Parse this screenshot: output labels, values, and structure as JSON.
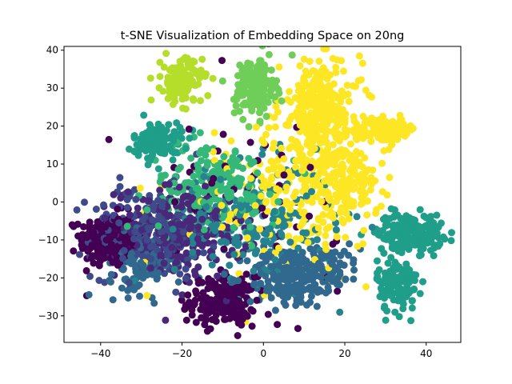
{
  "chart_data": {
    "type": "scatter",
    "title": "t-SNE Visualization of Embedding Space on 20ng",
    "xlabel": "",
    "ylabel": "",
    "xlim": [
      -49,
      48.5
    ],
    "ylim": [
      -37,
      41
    ],
    "xticks": [
      -40,
      -20,
      0,
      20,
      40
    ],
    "yticks": [
      -30,
      -20,
      -10,
      0,
      10,
      20,
      30,
      40
    ],
    "grid": false,
    "legend": "none",
    "colormap": "viridis",
    "clusters": [
      {
        "color": "#440154",
        "center": [
          -38,
          -10
        ],
        "spread": [
          3.5,
          3.5
        ],
        "count": 260
      },
      {
        "color": "#440154",
        "center": [
          -10,
          -26
        ],
        "spread": [
          4,
          3.2
        ],
        "count": 200
      },
      {
        "color": "#482878",
        "center": [
          -20,
          -8
        ],
        "spread": [
          8,
          6
        ],
        "count": 260
      },
      {
        "color": "#3e4a89",
        "center": [
          -28,
          -8
        ],
        "spread": [
          7,
          6
        ],
        "count": 220
      },
      {
        "color": "#31688e",
        "center": [
          6,
          -20
        ],
        "spread": [
          5,
          4
        ],
        "count": 180
      },
      {
        "color": "#31688e",
        "center": [
          14,
          -17
        ],
        "spread": [
          5,
          3
        ],
        "count": 120
      },
      {
        "color": "#31688e",
        "center": [
          -30,
          -16
        ],
        "spread": [
          4,
          4
        ],
        "count": 120
      },
      {
        "color": "#26828e",
        "center": [
          -2,
          -6
        ],
        "spread": [
          10,
          8
        ],
        "count": 220
      },
      {
        "color": "#1f9e89",
        "center": [
          36,
          -8
        ],
        "spread": [
          4,
          2.5
        ],
        "count": 200
      },
      {
        "color": "#1f9e89",
        "center": [
          33,
          -22
        ],
        "spread": [
          2.5,
          3.5
        ],
        "count": 120
      },
      {
        "color": "#1f9e89",
        "center": [
          -26,
          16
        ],
        "spread": [
          3,
          2.5
        ],
        "count": 120
      },
      {
        "color": "#35b779",
        "center": [
          -12,
          4
        ],
        "spread": [
          8,
          6
        ],
        "count": 200
      },
      {
        "color": "#6ece58",
        "center": [
          -2,
          30
        ],
        "spread": [
          2.5,
          4
        ],
        "count": 160
      },
      {
        "color": "#b5de2b",
        "center": [
          -20,
          32
        ],
        "spread": [
          2.5,
          3
        ],
        "count": 140
      },
      {
        "color": "#fde725",
        "center": [
          14,
          25
        ],
        "spread": [
          5,
          6
        ],
        "count": 260
      },
      {
        "color": "#fde725",
        "center": [
          12,
          5
        ],
        "spread": [
          8,
          8
        ],
        "count": 260
      },
      {
        "color": "#fde725",
        "center": [
          30,
          19
        ],
        "spread": [
          4,
          1.5
        ],
        "count": 120
      },
      {
        "color": "#fde725",
        "center": [
          20,
          5
        ],
        "spread": [
          4,
          6
        ],
        "count": 120
      },
      {
        "color": "#440154",
        "center": [
          -6,
          0
        ],
        "spread": [
          14,
          14
        ],
        "count": 60
      },
      {
        "color": "#fde725",
        "center": [
          0,
          0
        ],
        "spread": [
          12,
          10
        ],
        "count": 80
      }
    ]
  }
}
